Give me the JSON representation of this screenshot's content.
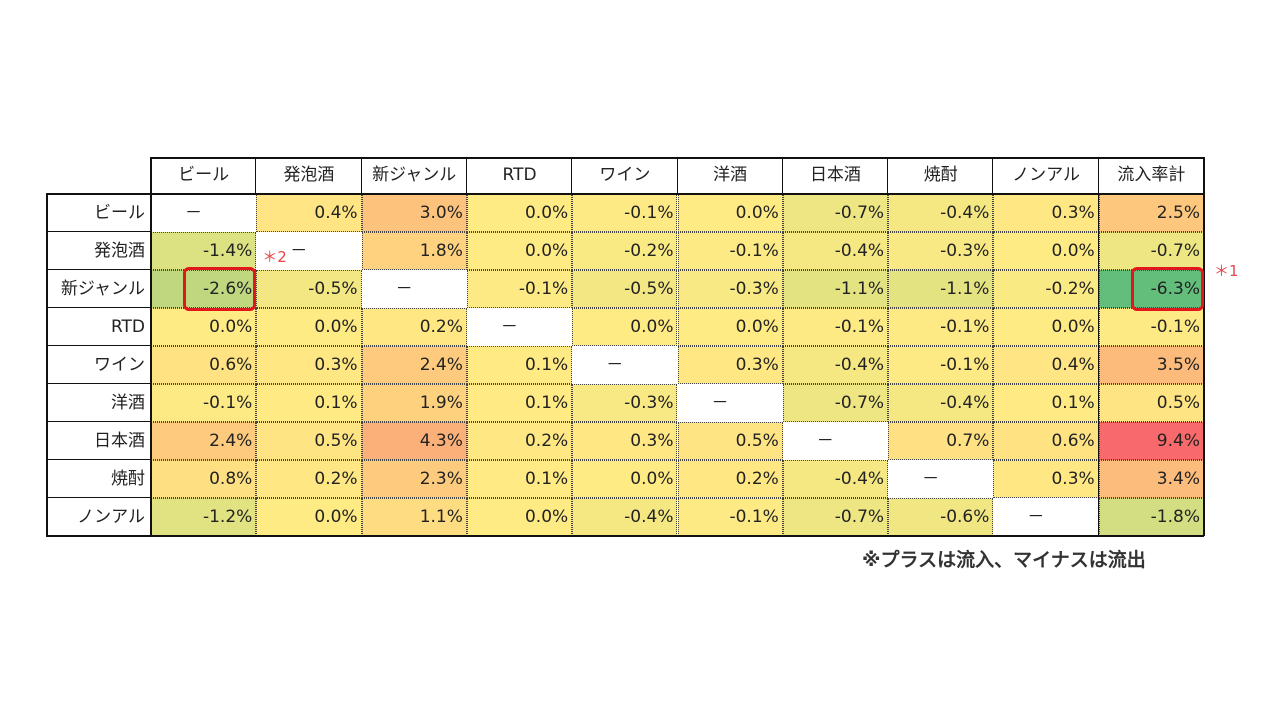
{
  "chart_data": {
    "type": "heatmap",
    "columns": [
      "ビール",
      "発泡酒",
      "新ジャンル",
      "RTD",
      "ワイン",
      "洋酒",
      "日本酒",
      "焼酎",
      "ノンアル",
      "流入率計"
    ],
    "rows": [
      "ビール",
      "発泡酒",
      "新ジャンル",
      "RTD",
      "ワイン",
      "洋酒",
      "日本酒",
      "焼酎",
      "ノンアル"
    ],
    "values": [
      [
        null,
        0.4,
        3.0,
        0.0,
        -0.1,
        0.0,
        -0.7,
        -0.4,
        0.3,
        2.5
      ],
      [
        -1.4,
        null,
        1.8,
        0.0,
        -0.2,
        -0.1,
        -0.4,
        -0.3,
        0.0,
        -0.7
      ],
      [
        -2.6,
        -0.5,
        null,
        -0.1,
        -0.5,
        -0.3,
        -1.1,
        -1.1,
        -0.2,
        -6.3
      ],
      [
        0.0,
        0.0,
        0.2,
        null,
        0.0,
        0.0,
        -0.1,
        -0.1,
        0.0,
        -0.1
      ],
      [
        0.6,
        0.3,
        2.4,
        0.1,
        null,
        0.3,
        -0.4,
        -0.1,
        0.4,
        3.5
      ],
      [
        -0.1,
        0.1,
        1.9,
        0.1,
        -0.3,
        null,
        -0.7,
        -0.4,
        0.1,
        0.5
      ],
      [
        2.4,
        0.5,
        4.3,
        0.2,
        0.3,
        0.5,
        null,
        0.7,
        0.6,
        9.4
      ],
      [
        0.8,
        0.2,
        2.3,
        0.1,
        0.0,
        0.2,
        -0.4,
        null,
        0.3,
        3.4
      ],
      [
        -1.2,
        0.0,
        1.1,
        0.0,
        -0.4,
        -0.1,
        -0.7,
        -0.6,
        null,
        -1.8
      ]
    ],
    "unit": "%",
    "dash_text": "－",
    "color_scale": {
      "min": "#63be7b",
      "mid": "#ffeb84",
      "max": "#f8696b"
    },
    "annotations": [
      {
        "row": 2,
        "col": 9,
        "label": "＊1"
      },
      {
        "row": 2,
        "col": 0,
        "label": "＊2"
      }
    ],
    "highlight_color": "#e0171c",
    "note": "※プラスは流入、マイナスは流出"
  }
}
